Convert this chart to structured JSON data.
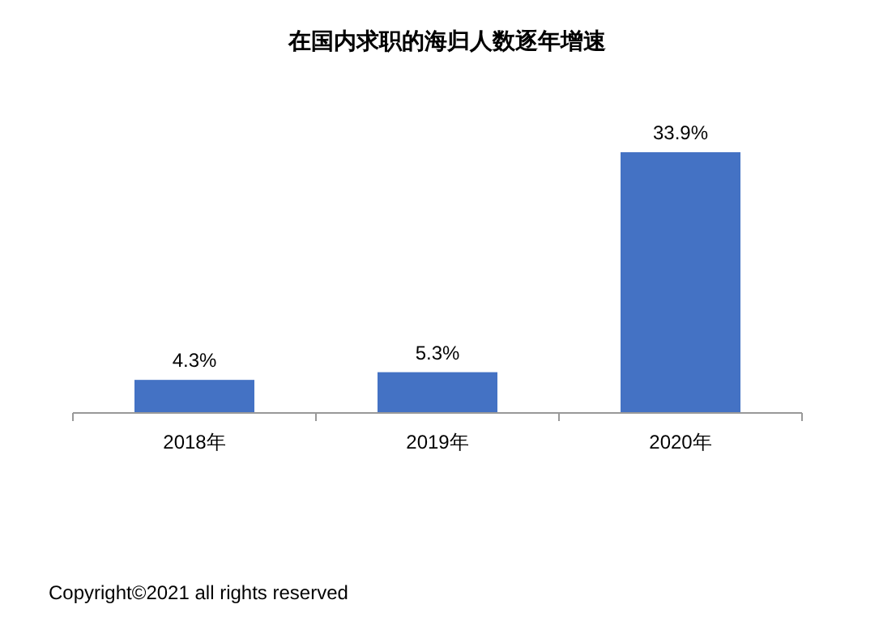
{
  "chart_data": {
    "type": "bar",
    "title": "在国内求职的海归人数逐年增速",
    "categories": [
      "2018年",
      "2019年",
      "2020年"
    ],
    "values": [
      4.3,
      5.3,
      33.9
    ],
    "value_labels": [
      "4.3%",
      "5.3%",
      "33.9%"
    ],
    "color": "#4472c4",
    "annotations": [
      "Copyright©2021 all rights reserved"
    ]
  }
}
